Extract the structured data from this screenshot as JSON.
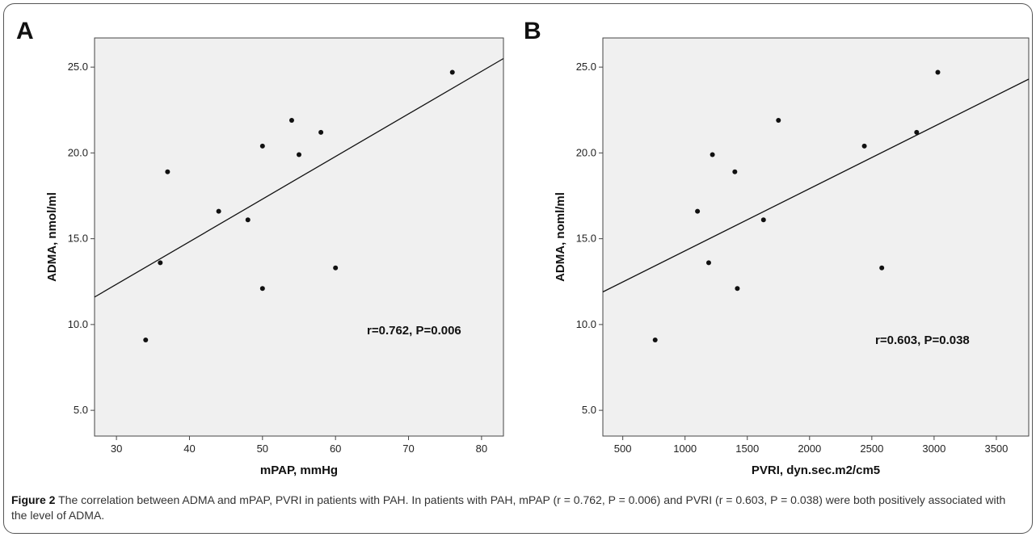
{
  "panels": [
    {
      "letter": "A"
    },
    {
      "letter": "B"
    }
  ],
  "chart_data": [
    {
      "type": "scatter",
      "panel": "A",
      "xlabel": "mPAP, mmHg",
      "ylabel": "ADMA, nmol/ml",
      "xlim": [
        27,
        83
      ],
      "ylim": [
        3.5,
        26.7
      ],
      "xticks": [
        30,
        40,
        50,
        60,
        70,
        80
      ],
      "yticks": [
        5.0,
        10.0,
        15.0,
        20.0,
        25.0
      ],
      "ytick_labels": [
        "5.0",
        "10.0",
        "15.0",
        "20.0",
        "25.0"
      ],
      "points": [
        {
          "x": 34,
          "y": 9.1
        },
        {
          "x": 36,
          "y": 13.6
        },
        {
          "x": 37,
          "y": 18.9
        },
        {
          "x": 44,
          "y": 16.6
        },
        {
          "x": 48,
          "y": 16.1
        },
        {
          "x": 50,
          "y": 20.4
        },
        {
          "x": 50,
          "y": 12.1
        },
        {
          "x": 54,
          "y": 21.9
        },
        {
          "x": 55,
          "y": 19.9
        },
        {
          "x": 58,
          "y": 21.2
        },
        {
          "x": 60,
          "y": 13.3
        },
        {
          "x": 76,
          "y": 24.7
        }
      ],
      "fit_line": [
        {
          "x": 27,
          "y": 11.6
        },
        {
          "x": 83,
          "y": 25.5
        }
      ],
      "annotation": "r=0.762, P=0.006",
      "grid": false,
      "plot_bg": "#f0f0f0"
    },
    {
      "type": "scatter",
      "panel": "B",
      "xlabel": "PVRI, dyn.sec.m2/cm5",
      "ylabel": "ADMA, noml/ml",
      "xlim": [
        340,
        3760
      ],
      "ylim": [
        3.5,
        26.7
      ],
      "xticks": [
        500,
        1000,
        1500,
        2000,
        2500,
        3000,
        3500
      ],
      "yticks": [
        5.0,
        10.0,
        15.0,
        20.0,
        25.0
      ],
      "ytick_labels": [
        "5.0",
        "10.0",
        "15.0",
        "20.0",
        "25.0"
      ],
      "points": [
        {
          "x": 760,
          "y": 9.1
        },
        {
          "x": 1100,
          "y": 16.6
        },
        {
          "x": 1190,
          "y": 13.6
        },
        {
          "x": 1220,
          "y": 19.9
        },
        {
          "x": 1400,
          "y": 18.9
        },
        {
          "x": 1420,
          "y": 12.1
        },
        {
          "x": 1630,
          "y": 16.1
        },
        {
          "x": 1750,
          "y": 21.9
        },
        {
          "x": 2440,
          "y": 20.4
        },
        {
          "x": 2580,
          "y": 13.3
        },
        {
          "x": 2860,
          "y": 21.2
        },
        {
          "x": 3030,
          "y": 24.7
        }
      ],
      "fit_line": [
        {
          "x": 340,
          "y": 11.9
        },
        {
          "x": 3760,
          "y": 24.3
        }
      ],
      "annotation": "r=0.603, P=0.038",
      "grid": false,
      "plot_bg": "#f0f0f0"
    }
  ],
  "caption": {
    "label": "Figure 2",
    "text": " The correlation between ADMA and mPAP, PVRI in patients with PAH. In patients with PAH, mPAP (r = 0.762, P = 0.006) and PVRI (r = 0.603, P = 0.038) were both positively associated with the level of ADMA."
  },
  "colors": {
    "frame": "#555555",
    "point": "#111111",
    "line": "#111111",
    "plot_bg": "#f0f0f0"
  }
}
